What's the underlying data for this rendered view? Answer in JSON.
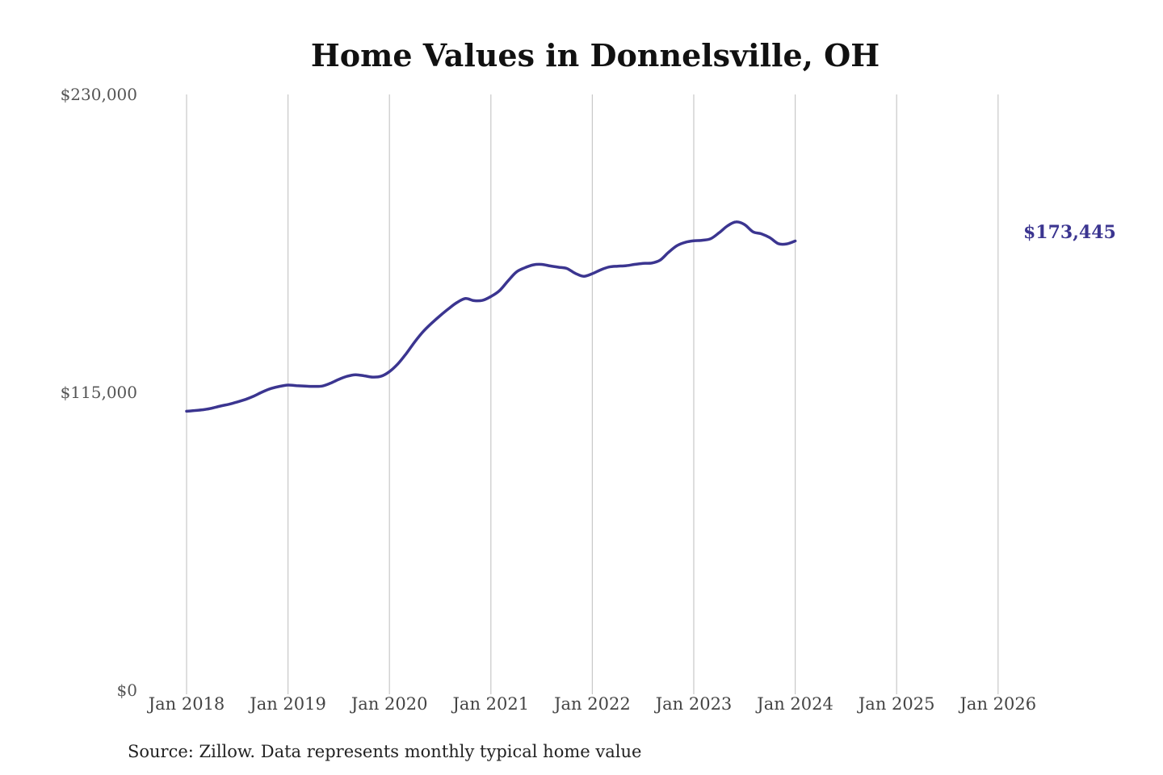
{
  "chart_data": {
    "type": "line",
    "title": "Home Values in Donnelsville, OH",
    "source": "Source: Zillow. Data represents monthly typical home value",
    "ylim": [
      0,
      230000
    ],
    "yticks": [
      {
        "value": 0,
        "label": "$0"
      },
      {
        "value": 115000,
        "label": "$115,000"
      },
      {
        "value": 230000,
        "label": "$230,000"
      }
    ],
    "xticks": [
      {
        "year": 2018,
        "label": "Jan 2018"
      },
      {
        "year": 2019,
        "label": "Jan 2019"
      },
      {
        "year": 2020,
        "label": "Jan 2020"
      },
      {
        "year": 2021,
        "label": "Jan 2021"
      },
      {
        "year": 2022,
        "label": "Jan 2022"
      },
      {
        "year": 2023,
        "label": "Jan 2023"
      },
      {
        "year": 2024,
        "label": "Jan 2024"
      },
      {
        "year": 2025,
        "label": "Jan 2025"
      },
      {
        "year": 2026,
        "label": "Jan 2026"
      }
    ],
    "grid": "vertical",
    "line_color": "#3b3590",
    "end_label": "$173,445",
    "series": [
      {
        "points": [
          [
            "2018-01",
            107700
          ],
          [
            "2018-02",
            108000
          ],
          [
            "2018-03",
            108300
          ],
          [
            "2018-04",
            108900
          ],
          [
            "2018-05",
            109700
          ],
          [
            "2018-06",
            110400
          ],
          [
            "2018-07",
            111300
          ],
          [
            "2018-08",
            112300
          ],
          [
            "2018-09",
            113600
          ],
          [
            "2018-10",
            115200
          ],
          [
            "2018-11",
            116500
          ],
          [
            "2018-12",
            117300
          ],
          [
            "2019-01",
            117800
          ],
          [
            "2019-02",
            117600
          ],
          [
            "2019-03",
            117400
          ],
          [
            "2019-04",
            117300
          ],
          [
            "2019-05",
            117400
          ],
          [
            "2019-06",
            118500
          ],
          [
            "2019-07",
            120000
          ],
          [
            "2019-08",
            121200
          ],
          [
            "2019-09",
            121800
          ],
          [
            "2019-10",
            121400
          ],
          [
            "2019-11",
            120900
          ],
          [
            "2019-12",
            121200
          ],
          [
            "2020-01",
            123000
          ],
          [
            "2020-02",
            126000
          ],
          [
            "2020-03",
            130000
          ],
          [
            "2020-04",
            134500
          ],
          [
            "2020-05",
            138500
          ],
          [
            "2020-06",
            141700
          ],
          [
            "2020-07",
            144600
          ],
          [
            "2020-08",
            147300
          ],
          [
            "2020-09",
            149700
          ],
          [
            "2020-10",
            151200
          ],
          [
            "2020-11",
            150400
          ],
          [
            "2020-12",
            150500
          ],
          [
            "2021-01",
            152000
          ],
          [
            "2021-02",
            154200
          ],
          [
            "2021-03",
            157900
          ],
          [
            "2021-04",
            161400
          ],
          [
            "2021-05",
            163100
          ],
          [
            "2021-06",
            164200
          ],
          [
            "2021-07",
            164400
          ],
          [
            "2021-08",
            163800
          ],
          [
            "2021-09",
            163300
          ],
          [
            "2021-10",
            162800
          ],
          [
            "2021-11",
            160900
          ],
          [
            "2021-12",
            159800
          ],
          [
            "2022-01",
            160800
          ],
          [
            "2022-02",
            162300
          ],
          [
            "2022-03",
            163400
          ],
          [
            "2022-04",
            163700
          ],
          [
            "2022-05",
            163900
          ],
          [
            "2022-06",
            164400
          ],
          [
            "2022-07",
            164800
          ],
          [
            "2022-08",
            164900
          ],
          [
            "2022-09",
            166000
          ],
          [
            "2022-10",
            169000
          ],
          [
            "2022-11",
            171600
          ],
          [
            "2022-12",
            172900
          ],
          [
            "2023-01",
            173500
          ],
          [
            "2023-02",
            173700
          ],
          [
            "2023-03",
            174300
          ],
          [
            "2023-04",
            176600
          ],
          [
            "2023-05",
            179300
          ],
          [
            "2023-06",
            180800
          ],
          [
            "2023-07",
            179800
          ],
          [
            "2023-08",
            177000
          ],
          [
            "2023-09",
            176200
          ],
          [
            "2023-10",
            174700
          ],
          [
            "2023-11",
            172400
          ],
          [
            "2023-12",
            172300
          ],
          [
            "2024-01",
            173445
          ]
        ]
      }
    ]
  }
}
